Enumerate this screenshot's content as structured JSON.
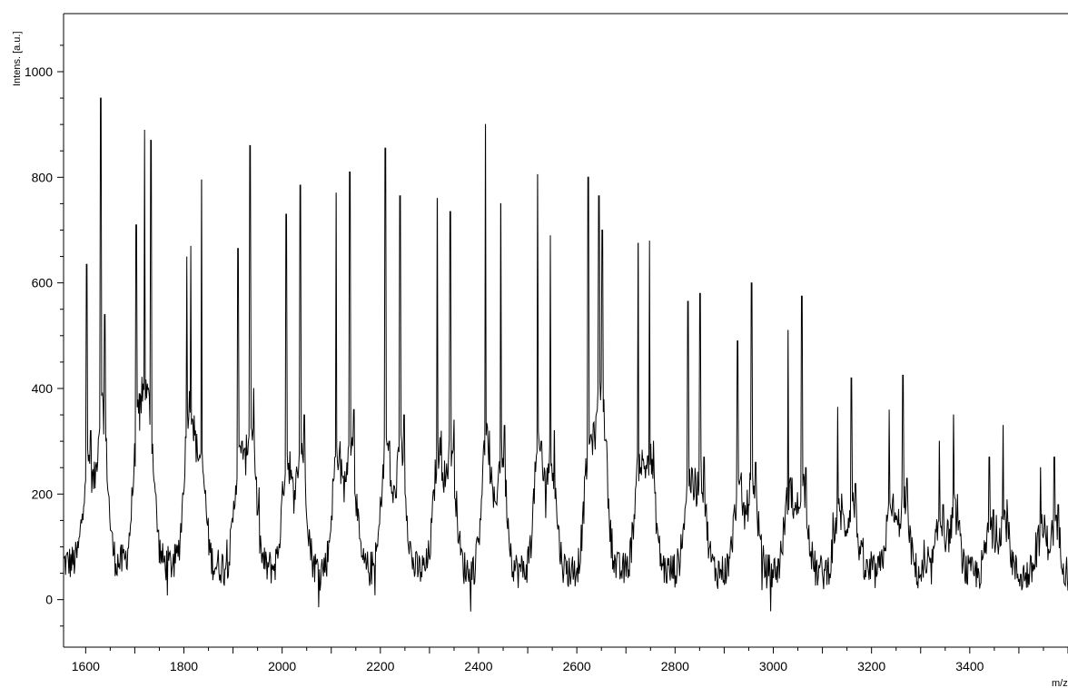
{
  "chart_data": {
    "type": "line",
    "title": "",
    "ylabel": "Intens. [a.u.]",
    "xlabel": "m/z",
    "xlim": [
      1555,
      3600
    ],
    "ylim": [
      -90,
      1110
    ],
    "x_ticks": [
      1600,
      1800,
      2000,
      2200,
      2400,
      2600,
      2800,
      3000,
      3200,
      3400
    ],
    "y_ticks": [
      0,
      200,
      400,
      600,
      800,
      1000
    ],
    "grid": false,
    "baseline": {
      "x": [
        1555,
        1700,
        2000,
        2400,
        2800,
        3200,
        3600
      ],
      "y": [
        70,
        70,
        60,
        55,
        55,
        50,
        45
      ]
    },
    "peaks": [
      {
        "x": 1602,
        "y": 635
      },
      {
        "x": 1610,
        "y": 320
      },
      {
        "x": 1631,
        "y": 950
      },
      {
        "x": 1639,
        "y": 540
      },
      {
        "x": 1703,
        "y": 710
      },
      {
        "x": 1710,
        "y": 320
      },
      {
        "x": 1720,
        "y": 890
      },
      {
        "x": 1733,
        "y": 870
      },
      {
        "x": 1806,
        "y": 650
      },
      {
        "x": 1814,
        "y": 670
      },
      {
        "x": 1820,
        "y": 300
      },
      {
        "x": 1836,
        "y": 795
      },
      {
        "x": 1910,
        "y": 665
      },
      {
        "x": 1918,
        "y": 300
      },
      {
        "x": 1935,
        "y": 860
      },
      {
        "x": 1942,
        "y": 400
      },
      {
        "x": 2008,
        "y": 730
      },
      {
        "x": 2016,
        "y": 280
      },
      {
        "x": 2037,
        "y": 785
      },
      {
        "x": 2045,
        "y": 350
      },
      {
        "x": 2110,
        "y": 770
      },
      {
        "x": 2118,
        "y": 300
      },
      {
        "x": 2138,
        "y": 810
      },
      {
        "x": 2146,
        "y": 360
      },
      {
        "x": 2210,
        "y": 855
      },
      {
        "x": 2218,
        "y": 300
      },
      {
        "x": 2240,
        "y": 765
      },
      {
        "x": 2248,
        "y": 350
      },
      {
        "x": 2316,
        "y": 760
      },
      {
        "x": 2324,
        "y": 320
      },
      {
        "x": 2342,
        "y": 735
      },
      {
        "x": 2350,
        "y": 340
      },
      {
        "x": 2414,
        "y": 900
      },
      {
        "x": 2422,
        "y": 320
      },
      {
        "x": 2445,
        "y": 750
      },
      {
        "x": 2453,
        "y": 330
      },
      {
        "x": 2520,
        "y": 805
      },
      {
        "x": 2528,
        "y": 300
      },
      {
        "x": 2546,
        "y": 690
      },
      {
        "x": 2554,
        "y": 320
      },
      {
        "x": 2623,
        "y": 800
      },
      {
        "x": 2631,
        "y": 300
      },
      {
        "x": 2645,
        "y": 765
      },
      {
        "x": 2652,
        "y": 700
      },
      {
        "x": 2660,
        "y": 300
      },
      {
        "x": 2725,
        "y": 675
      },
      {
        "x": 2733,
        "y": 280
      },
      {
        "x": 2748,
        "y": 680
      },
      {
        "x": 2756,
        "y": 300
      },
      {
        "x": 2826,
        "y": 565
      },
      {
        "x": 2834,
        "y": 250
      },
      {
        "x": 2851,
        "y": 580
      },
      {
        "x": 2859,
        "y": 270
      },
      {
        "x": 2927,
        "y": 490
      },
      {
        "x": 2935,
        "y": 240
      },
      {
        "x": 2956,
        "y": 600
      },
      {
        "x": 2964,
        "y": 260
      },
      {
        "x": 3030,
        "y": 510
      },
      {
        "x": 3038,
        "y": 230
      },
      {
        "x": 3058,
        "y": 575
      },
      {
        "x": 3066,
        "y": 250
      },
      {
        "x": 3131,
        "y": 365
      },
      {
        "x": 3139,
        "y": 200
      },
      {
        "x": 3159,
        "y": 420
      },
      {
        "x": 3167,
        "y": 220
      },
      {
        "x": 3236,
        "y": 360
      },
      {
        "x": 3244,
        "y": 200
      },
      {
        "x": 3264,
        "y": 425
      },
      {
        "x": 3272,
        "y": 230
      },
      {
        "x": 3338,
        "y": 300
      },
      {
        "x": 3346,
        "y": 180
      },
      {
        "x": 3367,
        "y": 350
      },
      {
        "x": 3375,
        "y": 200
      },
      {
        "x": 3440,
        "y": 270
      },
      {
        "x": 3448,
        "y": 170
      },
      {
        "x": 3468,
        "y": 330
      },
      {
        "x": 3476,
        "y": 190
      },
      {
        "x": 3544,
        "y": 250
      },
      {
        "x": 3552,
        "y": 160
      },
      {
        "x": 3572,
        "y": 270
      },
      {
        "x": 3580,
        "y": 180
      }
    ],
    "colors": {
      "line": "#000000",
      "axis": "#000000",
      "background": "#ffffff"
    }
  }
}
